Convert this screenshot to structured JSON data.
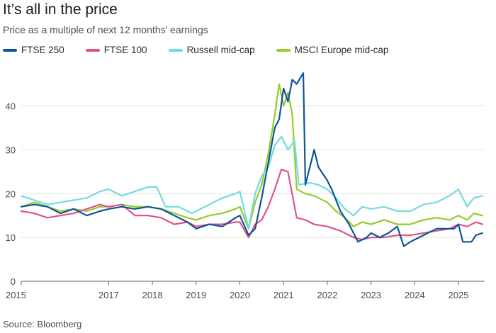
{
  "title": "It’s all in the price",
  "subtitle": "Price as a multiple of next 12 months’ earnings",
  "source": "Source: Bloomberg",
  "chart_data": {
    "type": "line",
    "title": "It’s all in the price",
    "subtitle": "Price as a multiple of next 12 months’ earnings",
    "xlabel": "",
    "ylabel": "",
    "xlim": [
      2015.0,
      2025.6
    ],
    "ylim": [
      0,
      48
    ],
    "yticks": [
      0,
      10,
      20,
      30,
      40
    ],
    "xticks": [
      2015,
      2017,
      2018,
      2019,
      2020,
      2021,
      2022,
      2023,
      2024,
      2025
    ],
    "grid": "horizontal",
    "legend_position": "top",
    "series": [
      {
        "name": "FTSE 250",
        "color": "#0f5499",
        "points": [
          [
            2015.0,
            17
          ],
          [
            2015.3,
            17.5
          ],
          [
            2015.6,
            17
          ],
          [
            2015.9,
            15.5
          ],
          [
            2016.2,
            16.5
          ],
          [
            2016.5,
            15
          ],
          [
            2016.8,
            16
          ],
          [
            2017.0,
            16.5
          ],
          [
            2017.3,
            17
          ],
          [
            2017.6,
            16.5
          ],
          [
            2017.9,
            17
          ],
          [
            2018.2,
            16.5
          ],
          [
            2018.5,
            15
          ],
          [
            2018.8,
            13.5
          ],
          [
            2019.0,
            12
          ],
          [
            2019.3,
            13
          ],
          [
            2019.6,
            12.5
          ],
          [
            2019.9,
            14.5
          ],
          [
            2020.0,
            15
          ],
          [
            2020.2,
            10.5
          ],
          [
            2020.35,
            12
          ],
          [
            2020.5,
            19
          ],
          [
            2020.65,
            27
          ],
          [
            2020.8,
            35
          ],
          [
            2020.9,
            37
          ],
          [
            2021.0,
            44
          ],
          [
            2021.1,
            41
          ],
          [
            2021.2,
            46
          ],
          [
            2021.3,
            45
          ],
          [
            2021.45,
            47.5
          ],
          [
            2021.5,
            22
          ],
          [
            2021.6,
            26
          ],
          [
            2021.7,
            30
          ],
          [
            2021.8,
            26
          ],
          [
            2022.0,
            23
          ],
          [
            2022.1,
            21
          ],
          [
            2022.3,
            16
          ],
          [
            2022.5,
            13
          ],
          [
            2022.7,
            9
          ],
          [
            2022.9,
            10
          ],
          [
            2023.0,
            11
          ],
          [
            2023.2,
            10
          ],
          [
            2023.4,
            11
          ],
          [
            2023.6,
            12.5
          ],
          [
            2023.75,
            8
          ],
          [
            2023.9,
            9
          ],
          [
            2024.1,
            10
          ],
          [
            2024.3,
            11
          ],
          [
            2024.5,
            12
          ],
          [
            2024.7,
            12
          ],
          [
            2024.9,
            12
          ],
          [
            2025.0,
            13
          ],
          [
            2025.1,
            9
          ],
          [
            2025.3,
            9
          ],
          [
            2025.4,
            10.5
          ],
          [
            2025.55,
            11
          ]
        ]
      },
      {
        "name": "FTSE 100",
        "color": "#e0528d",
        "points": [
          [
            2015.0,
            16
          ],
          [
            2015.3,
            15.5
          ],
          [
            2015.6,
            14.5
          ],
          [
            2015.9,
            15
          ],
          [
            2016.2,
            15.5
          ],
          [
            2016.5,
            16.5
          ],
          [
            2016.8,
            17.5
          ],
          [
            2017.0,
            17
          ],
          [
            2017.3,
            17.5
          ],
          [
            2017.6,
            15
          ],
          [
            2017.9,
            15
          ],
          [
            2018.2,
            14.5
          ],
          [
            2018.5,
            13
          ],
          [
            2018.8,
            13.5
          ],
          [
            2019.0,
            12.5
          ],
          [
            2019.3,
            13
          ],
          [
            2019.6,
            13
          ],
          [
            2019.9,
            13.5
          ],
          [
            2020.0,
            13.5
          ],
          [
            2020.2,
            10
          ],
          [
            2020.35,
            13
          ],
          [
            2020.5,
            14
          ],
          [
            2020.65,
            17
          ],
          [
            2020.8,
            21
          ],
          [
            2020.95,
            25.5
          ],
          [
            2021.1,
            25
          ],
          [
            2021.3,
            14.5
          ],
          [
            2021.5,
            14
          ],
          [
            2021.7,
            13
          ],
          [
            2022.0,
            12.5
          ],
          [
            2022.3,
            11.5
          ],
          [
            2022.6,
            10
          ],
          [
            2022.8,
            9.5
          ],
          [
            2023.0,
            10
          ],
          [
            2023.3,
            10
          ],
          [
            2023.6,
            10.5
          ],
          [
            2023.9,
            10.5
          ],
          [
            2024.2,
            11
          ],
          [
            2024.5,
            11.5
          ],
          [
            2024.8,
            12
          ],
          [
            2025.0,
            13
          ],
          [
            2025.2,
            12.5
          ],
          [
            2025.4,
            13.5
          ],
          [
            2025.55,
            13
          ]
        ]
      },
      {
        "name": "Russell mid-cap",
        "color": "#72dbe0",
        "points": [
          [
            2015.0,
            19.5
          ],
          [
            2015.3,
            18.5
          ],
          [
            2015.6,
            17.5
          ],
          [
            2015.9,
            18
          ],
          [
            2016.2,
            18.5
          ],
          [
            2016.5,
            19
          ],
          [
            2016.8,
            20.5
          ],
          [
            2017.0,
            21
          ],
          [
            2017.3,
            19.5
          ],
          [
            2017.6,
            20.5
          ],
          [
            2017.9,
            21.5
          ],
          [
            2018.1,
            21.5
          ],
          [
            2018.3,
            17
          ],
          [
            2018.6,
            17
          ],
          [
            2018.9,
            15.5
          ],
          [
            2019.0,
            16
          ],
          [
            2019.3,
            17.5
          ],
          [
            2019.6,
            19
          ],
          [
            2019.9,
            20
          ],
          [
            2020.0,
            20.5
          ],
          [
            2020.2,
            12
          ],
          [
            2020.35,
            20
          ],
          [
            2020.5,
            24
          ],
          [
            2020.65,
            26
          ],
          [
            2020.8,
            31
          ],
          [
            2020.95,
            33
          ],
          [
            2021.1,
            30
          ],
          [
            2021.25,
            32
          ],
          [
            2021.35,
            22
          ],
          [
            2021.6,
            22.5
          ],
          [
            2021.8,
            22
          ],
          [
            2022.0,
            21
          ],
          [
            2022.2,
            19
          ],
          [
            2022.4,
            16.5
          ],
          [
            2022.6,
            15
          ],
          [
            2022.8,
            17
          ],
          [
            2023.0,
            16.5
          ],
          [
            2023.3,
            17
          ],
          [
            2023.6,
            16
          ],
          [
            2023.9,
            16
          ],
          [
            2024.2,
            17.5
          ],
          [
            2024.5,
            18
          ],
          [
            2024.8,
            19.5
          ],
          [
            2025.0,
            21
          ],
          [
            2025.2,
            17
          ],
          [
            2025.35,
            19
          ],
          [
            2025.55,
            19.5
          ]
        ]
      },
      {
        "name": "MSCI Europe mid-cap",
        "color": "#96cc28",
        "points": [
          [
            2015.0,
            17
          ],
          [
            2015.3,
            18
          ],
          [
            2015.6,
            17
          ],
          [
            2015.9,
            16
          ],
          [
            2016.2,
            16.5
          ],
          [
            2016.5,
            16
          ],
          [
            2016.8,
            17
          ],
          [
            2017.0,
            17
          ],
          [
            2017.3,
            17.5
          ],
          [
            2017.6,
            17
          ],
          [
            2017.9,
            17
          ],
          [
            2018.2,
            16.5
          ],
          [
            2018.5,
            15.5
          ],
          [
            2018.8,
            14.5
          ],
          [
            2019.0,
            14
          ],
          [
            2019.3,
            15
          ],
          [
            2019.6,
            15.5
          ],
          [
            2019.9,
            16.5
          ],
          [
            2020.0,
            17
          ],
          [
            2020.2,
            12
          ],
          [
            2020.35,
            18
          ],
          [
            2020.5,
            22
          ],
          [
            2020.65,
            29
          ],
          [
            2020.8,
            38
          ],
          [
            2020.9,
            45
          ],
          [
            2021.0,
            40
          ],
          [
            2021.1,
            43
          ],
          [
            2021.2,
            38
          ],
          [
            2021.3,
            21
          ],
          [
            2021.5,
            20
          ],
          [
            2021.7,
            19.5
          ],
          [
            2022.0,
            18
          ],
          [
            2022.2,
            16
          ],
          [
            2022.4,
            14.5
          ],
          [
            2022.6,
            12.5
          ],
          [
            2022.8,
            13.5
          ],
          [
            2023.0,
            13
          ],
          [
            2023.3,
            14
          ],
          [
            2023.6,
            13
          ],
          [
            2023.9,
            13
          ],
          [
            2024.2,
            14
          ],
          [
            2024.5,
            14.5
          ],
          [
            2024.8,
            14
          ],
          [
            2025.0,
            15
          ],
          [
            2025.2,
            14
          ],
          [
            2025.35,
            15.5
          ],
          [
            2025.55,
            15
          ]
        ]
      }
    ]
  }
}
